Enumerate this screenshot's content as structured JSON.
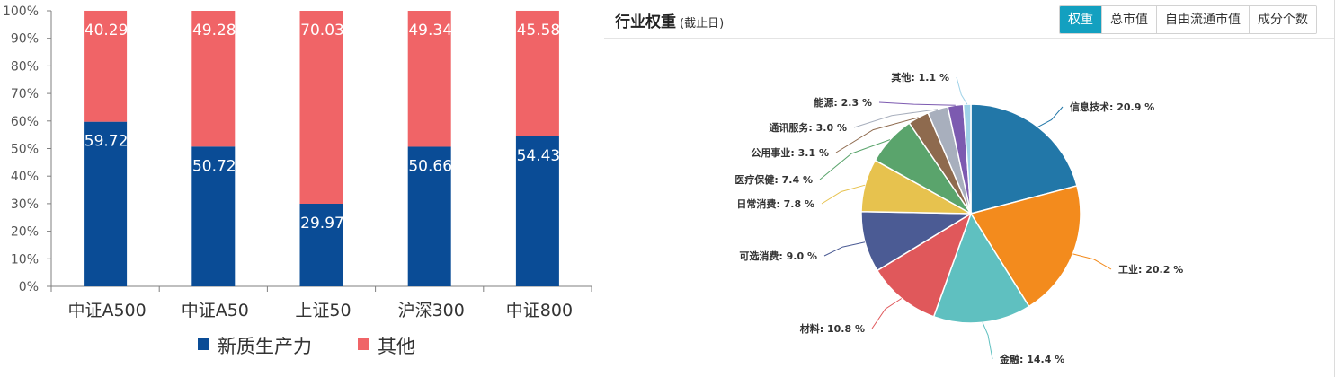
{
  "chart_data": [
    {
      "type": "bar",
      "stacked": true,
      "categories": [
        "中证A500",
        "中证A50",
        "上证50",
        "沪深300",
        "中证800"
      ],
      "series": [
        {
          "name": "新质生产力",
          "color": "#0a4c96",
          "values": [
            59.72,
            50.72,
            29.97,
            50.66,
            54.43
          ]
        },
        {
          "name": "其他",
          "color": "#f06467",
          "values": [
            40.29,
            49.28,
            70.03,
            49.34,
            45.58
          ]
        }
      ],
      "ylim": [
        0,
        100
      ],
      "yticks": [
        "0%",
        "10%",
        "20%",
        "30%",
        "40%",
        "50%",
        "60%",
        "70%",
        "80%",
        "90%",
        "100%"
      ],
      "data_labels": true,
      "legend": "bottom",
      "grid": false
    },
    {
      "type": "pie",
      "title": "行业权重",
      "subtitle": "(截止日)",
      "slices": [
        {
          "label": "信息技术",
          "value": 20.9,
          "display": "信息技术: 20.9 %",
          "color": "#2277a8"
        },
        {
          "label": "工业",
          "value": 20.2,
          "display": "工业: 20.2 %",
          "color": "#f38b1d"
        },
        {
          "label": "金融",
          "value": 14.4,
          "display": "金融: 14.4 %",
          "color": "#5fc0c0"
        },
        {
          "label": "材料",
          "value": 10.8,
          "display": "材料: 10.8 %",
          "color": "#e0585b"
        },
        {
          "label": "可选消费",
          "value": 9.0,
          "display": "可选消费: 9.0 %",
          "color": "#4b5b94"
        },
        {
          "label": "日常消费",
          "value": 7.8,
          "display": "日常消费: 7.8 %",
          "color": "#e7c24e"
        },
        {
          "label": "医疗保健",
          "value": 7.4,
          "display": "医疗保健: 7.4 %",
          "color": "#5aa46c"
        },
        {
          "label": "公用事业",
          "value": 3.1,
          "display": "公用事业: 3.1 %",
          "color": "#8e6a4e"
        },
        {
          "label": "通讯服务",
          "value": 3.0,
          "display": "通讯服务: 3.0 %",
          "color": "#a8afbd"
        },
        {
          "label": "能源",
          "value": 2.3,
          "display": "能源: 2.3 %",
          "color": "#7c5ab0"
        },
        {
          "label": "其他",
          "value": 1.1,
          "display": "其他: 1.1 %",
          "color": "#9fd2e8"
        }
      ],
      "legend": "none"
    }
  ],
  "weights_panel": {
    "title": "行业权重",
    "subtitle": "(截止日)",
    "tabs": [
      {
        "label": "权重",
        "active": true
      },
      {
        "label": "总市值",
        "active": false
      },
      {
        "label": "自由流通市值",
        "active": false
      },
      {
        "label": "成分个数",
        "active": false
      }
    ]
  }
}
